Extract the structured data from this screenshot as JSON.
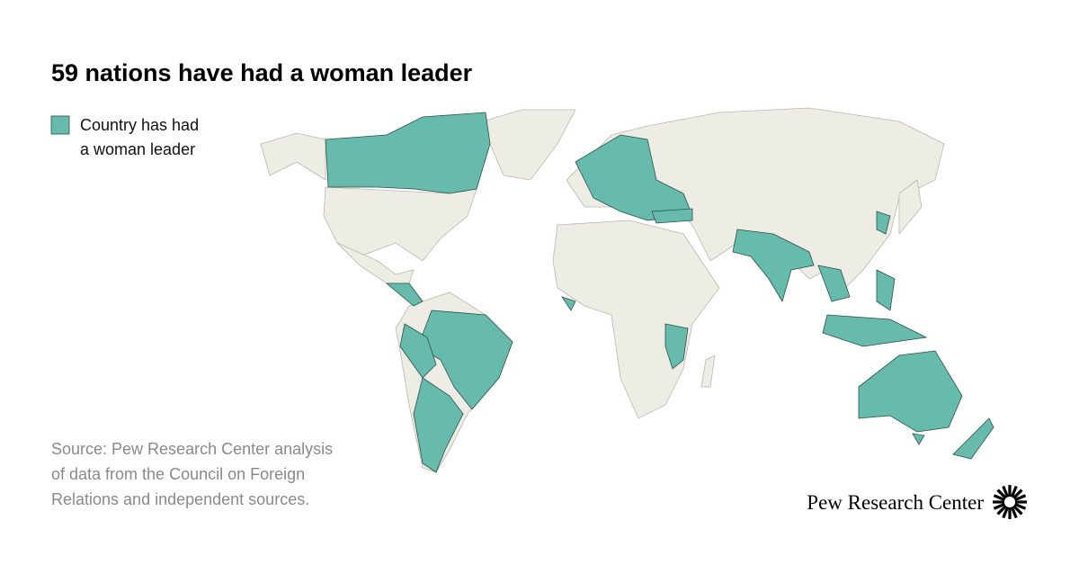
{
  "title": "59 nations have had a woman leader",
  "legend": {
    "label_lines": [
      "Country has had",
      "a woman leader"
    ],
    "color": "#66bbad"
  },
  "source_lines": [
    "Source: Pew Research Center analysis",
    "of data from the Council on Foreign",
    "Relations and independent sources."
  ],
  "logo": "Pew Research Center"
}
